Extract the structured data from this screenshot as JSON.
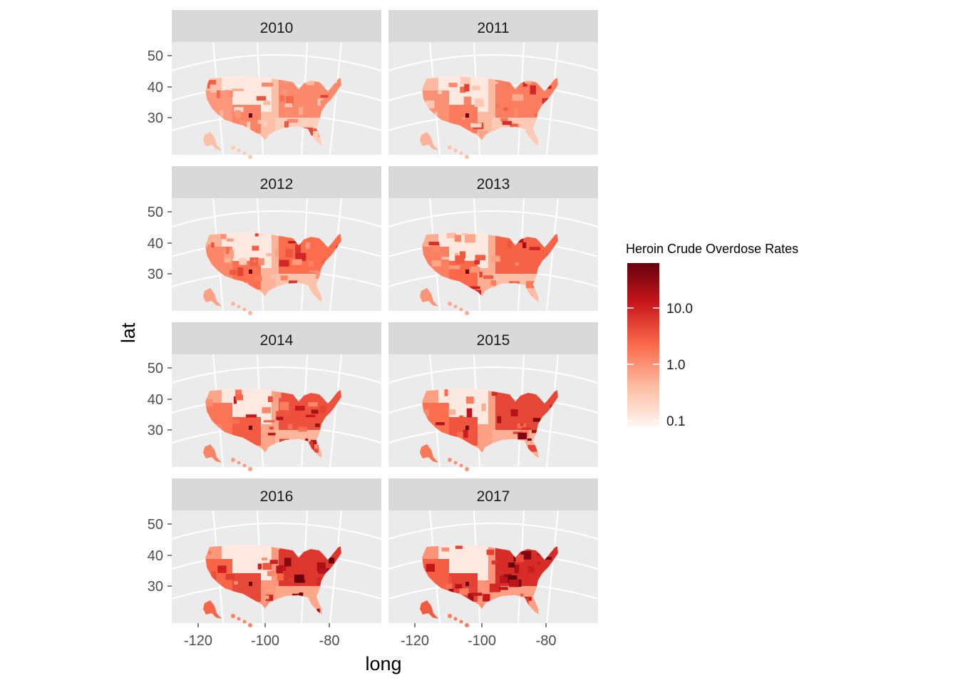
{
  "chart_data": {
    "type": "choropleth-facet-map",
    "panels": [
      {
        "label": "2010",
        "intensity": 0.2
      },
      {
        "label": "2011",
        "intensity": 0.28
      },
      {
        "label": "2012",
        "intensity": 0.38
      },
      {
        "label": "2013",
        "intensity": 0.45
      },
      {
        "label": "2014",
        "intensity": 0.55
      },
      {
        "label": "2015",
        "intensity": 0.62
      },
      {
        "label": "2016",
        "intensity": 0.72
      },
      {
        "label": "2017",
        "intensity": 0.78
      }
    ],
    "xlabel": "long",
    "ylabel": "lat",
    "x_ticks": [
      -120,
      -100,
      -80
    ],
    "x_tick_labels": [
      "-120",
      "-100",
      "-80"
    ],
    "y_ticks": [
      50,
      40,
      30
    ],
    "y_tick_labels": [
      "50",
      "40",
      "30"
    ],
    "legend": {
      "title": "Heroin Crude Overdose Rates",
      "scale": "log",
      "breaks": [
        10.0,
        1.0,
        0.1
      ],
      "break_labels": [
        "10.0",
        "1.0",
        "0.1"
      ],
      "colors": [
        "#fff5f0",
        "#fcbba1",
        "#fb6a4a",
        "#cb181d",
        "#67000d"
      ]
    }
  }
}
